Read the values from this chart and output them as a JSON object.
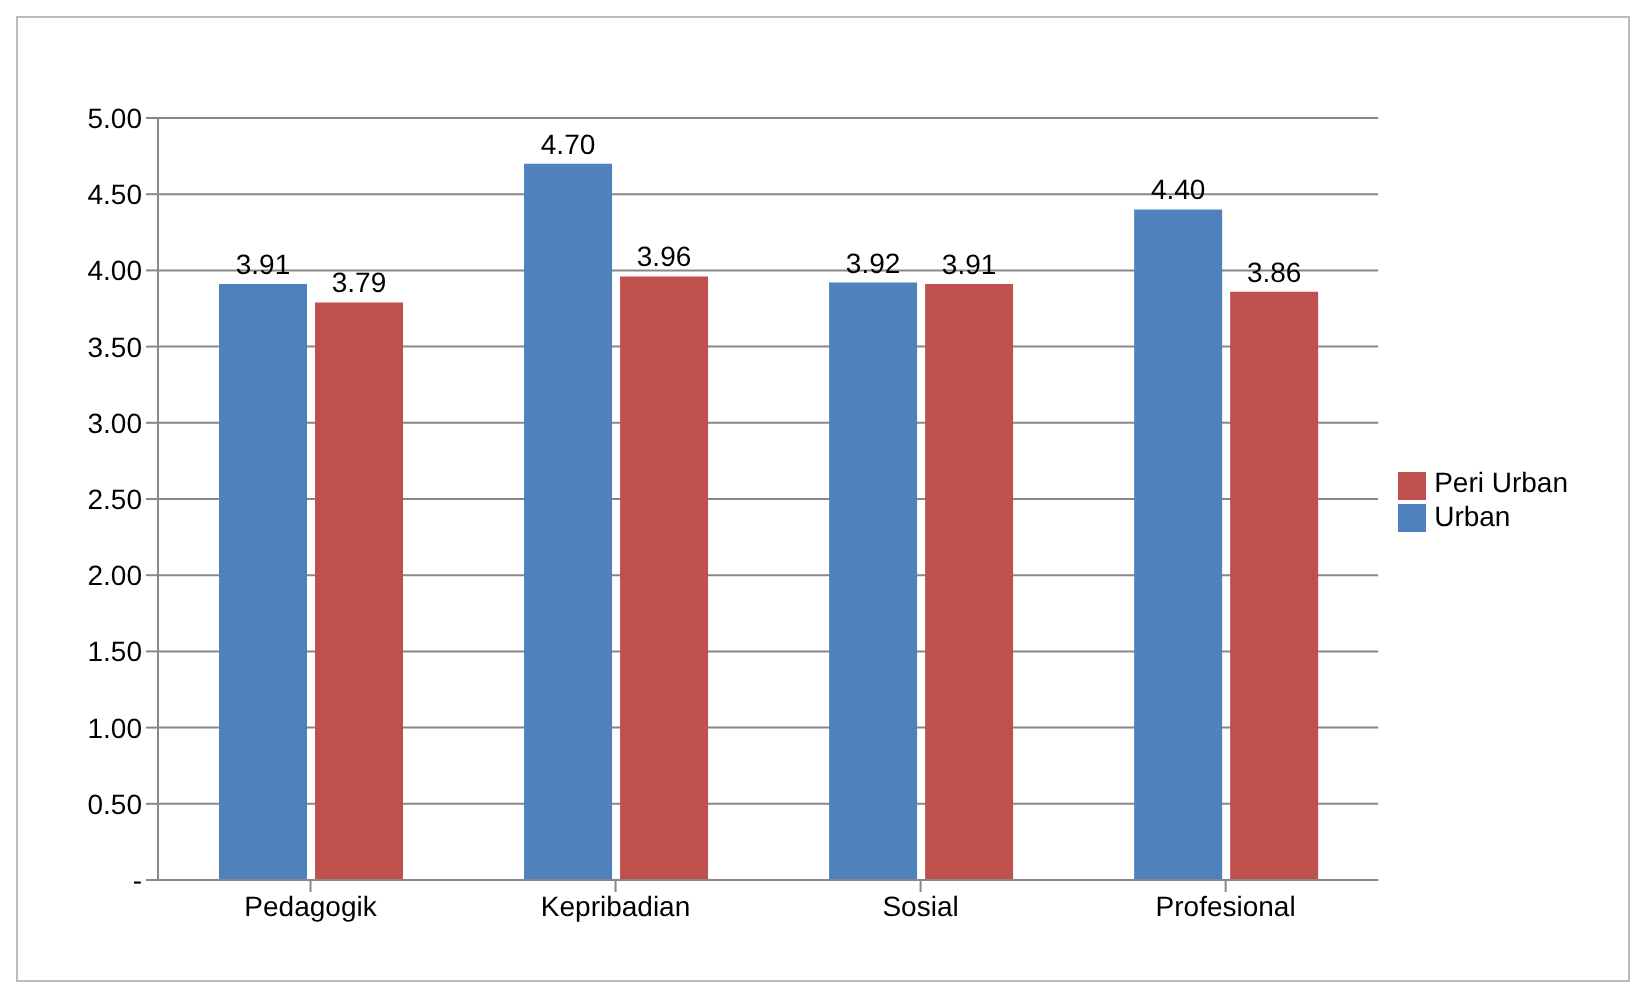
{
  "chart_data": {
    "type": "bar",
    "categories": [
      "Pedagogik",
      "Kepribadian",
      "Sosial",
      "Profesional"
    ],
    "series": [
      {
        "name": "Urban",
        "color": "#4f81bd",
        "values": [
          3.91,
          4.7,
          3.92,
          4.4
        ],
        "value_labels": [
          "3.91",
          "4.70",
          "3.92",
          "4.40"
        ]
      },
      {
        "name": "Peri Urban",
        "color": "#c0504d",
        "values": [
          3.79,
          3.96,
          3.91,
          3.86
        ],
        "value_labels": [
          "3.79",
          "3.96",
          "3.91",
          "3.86"
        ]
      }
    ],
    "ylim": [
      0,
      5
    ],
    "yticks": [
      {
        "value": 0,
        "label": "-"
      },
      {
        "value": 0.5,
        "label": "0.50"
      },
      {
        "value": 1,
        "label": "1.00"
      },
      {
        "value": 1.5,
        "label": "1.50"
      },
      {
        "value": 2,
        "label": "2.00"
      },
      {
        "value": 2.5,
        "label": "2.50"
      },
      {
        "value": 3,
        "label": "3.00"
      },
      {
        "value": 3.5,
        "label": "3.50"
      },
      {
        "value": 4,
        "label": "4.00"
      },
      {
        "value": 4.5,
        "label": "4.50"
      },
      {
        "value": 5,
        "label": "5.00"
      }
    ],
    "grid": "y",
    "legend": "right"
  }
}
